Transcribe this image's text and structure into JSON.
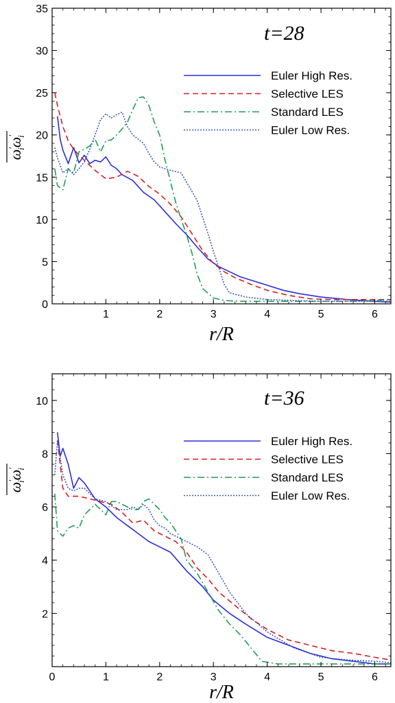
{
  "chart_data": [
    {
      "type": "line",
      "annotation": "t=28",
      "xlabel": "r/R",
      "ylabel": {
        "base": "ω",
        "sup": "′",
        "sub": "i"
      },
      "xlim": [
        0,
        6.3
      ],
      "ylim": [
        0,
        35
      ],
      "xticks": [
        1,
        2,
        3,
        4,
        5,
        6
      ],
      "yticks": [
        0,
        5,
        10,
        15,
        20,
        25,
        30,
        35
      ],
      "legend": "upper-right",
      "series": [
        {
          "name": "Euler High Res.",
          "color": "#2b2bd9",
          "dash": "solid",
          "x": [
            0.1,
            0.15,
            0.2,
            0.3,
            0.4,
            0.5,
            0.6,
            0.7,
            0.8,
            0.9,
            1.0,
            1.1,
            1.2,
            1.3,
            1.5,
            1.7,
            1.9,
            2.1,
            2.3,
            2.5,
            2.7,
            2.9,
            3.1,
            3.3,
            3.5,
            3.8,
            4.0,
            4.3,
            4.6,
            5.0,
            5.5,
            6.0,
            6.3
          ],
          "y": [
            22.2,
            19.5,
            18.2,
            16.6,
            18.5,
            16.7,
            17.6,
            16.6,
            17.0,
            16.8,
            17.4,
            16.4,
            16.0,
            15.3,
            14.6,
            13.2,
            12.3,
            10.9,
            9.5,
            8.2,
            6.7,
            5.3,
            4.4,
            3.8,
            3.2,
            2.6,
            2.2,
            1.6,
            1.2,
            0.8,
            0.5,
            0.3,
            0.2
          ]
        },
        {
          "name": "Selective LES",
          "color": "#d21f1f",
          "dash": "8,5",
          "x": [
            0.05,
            0.1,
            0.2,
            0.3,
            0.4,
            0.5,
            0.6,
            0.8,
            1.0,
            1.2,
            1.4,
            1.6,
            1.8,
            2.0,
            2.2,
            2.4,
            2.6,
            2.8,
            3.0,
            3.2,
            3.4,
            3.7,
            4.0,
            4.4,
            4.8,
            5.2,
            5.6,
            6.0,
            6.3
          ],
          "y": [
            25.0,
            23.5,
            21.0,
            19.3,
            18.3,
            17.6,
            17.0,
            15.8,
            14.8,
            15.0,
            15.7,
            15.1,
            13.9,
            13.0,
            11.8,
            10.3,
            8.3,
            6.3,
            4.8,
            3.8,
            3.1,
            2.3,
            1.6,
            1.0,
            0.6,
            0.5,
            0.5,
            0.5,
            0.5
          ]
        },
        {
          "name": "Standard LES",
          "color": "#1e9c55",
          "dash": "10,4,2,4",
          "x": [
            0.05,
            0.1,
            0.2,
            0.3,
            0.4,
            0.5,
            0.6,
            0.7,
            0.8,
            0.9,
            1.0,
            1.1,
            1.2,
            1.3,
            1.4,
            1.5,
            1.6,
            1.7,
            1.8,
            1.9,
            2.0,
            2.1,
            2.2,
            2.3,
            2.4,
            2.5,
            2.6,
            2.7,
            2.8,
            3.0,
            3.2,
            3.5,
            4.0,
            4.5,
            5.0,
            5.5,
            6.0,
            6.3
          ],
          "y": [
            16.0,
            14.0,
            13.5,
            16.0,
            15.5,
            18.0,
            18.3,
            18.7,
            19.5,
            18.0,
            19.3,
            19.4,
            20.0,
            20.7,
            21.5,
            23.0,
            24.4,
            24.5,
            23.5,
            21.5,
            20.0,
            17.0,
            14.5,
            12.0,
            10.0,
            8.2,
            6.0,
            3.5,
            1.8,
            0.7,
            0.4,
            0.3,
            0.3,
            0.3,
            0.3,
            0.3,
            0.4,
            0.5
          ]
        },
        {
          "name": "Euler Low Res.",
          "color": "#3a58b8",
          "dash": "2,2",
          "x": [
            0.05,
            0.1,
            0.2,
            0.3,
            0.4,
            0.5,
            0.6,
            0.7,
            0.8,
            0.9,
            1.0,
            1.1,
            1.2,
            1.3,
            1.4,
            1.5,
            1.6,
            1.7,
            1.8,
            1.9,
            2.0,
            2.2,
            2.4,
            2.6,
            2.7,
            2.8,
            2.9,
            3.0,
            3.1,
            3.2,
            3.3,
            3.6,
            4.0,
            4.5,
            5.0,
            5.5,
            6.0,
            6.3
          ],
          "y": [
            18.5,
            17.3,
            15.5,
            16.0,
            15.3,
            16.0,
            16.8,
            18.3,
            20.0,
            21.8,
            22.5,
            22.0,
            22.4,
            22.7,
            21.0,
            20.0,
            19.5,
            19.0,
            17.8,
            16.8,
            16.2,
            15.8,
            15.5,
            13.3,
            12.2,
            10.2,
            8.3,
            6.2,
            4.3,
            2.3,
            1.3,
            0.8,
            0.5,
            0.4,
            0.3,
            0.3,
            0.3,
            0.3
          ]
        }
      ]
    },
    {
      "type": "line",
      "annotation": "t=36",
      "xlabel": "r/R",
      "ylabel": {
        "base": "ω",
        "sup": "′",
        "sub": "i"
      },
      "xlim": [
        0,
        6.3
      ],
      "ylim": [
        0,
        11
      ],
      "xticks": [
        0,
        1,
        2,
        3,
        4,
        5,
        6
      ],
      "yticks": [
        2,
        4,
        6,
        8,
        10
      ],
      "legend": "upper-right",
      "series": [
        {
          "name": "Euler High Res.",
          "color": "#2b2bd9",
          "dash": "solid",
          "x": [
            0.1,
            0.15,
            0.2,
            0.3,
            0.4,
            0.5,
            0.6,
            0.7,
            0.8,
            1.0,
            1.2,
            1.4,
            1.6,
            1.8,
            2.0,
            2.2,
            2.5,
            2.8,
            3.0,
            3.3,
            3.6,
            4.0,
            4.4,
            4.8,
            5.2,
            5.6,
            6.0,
            6.3
          ],
          "y": [
            8.8,
            7.9,
            8.2,
            7.6,
            6.7,
            7.1,
            6.9,
            6.6,
            6.3,
            6.0,
            5.6,
            5.3,
            5.0,
            4.7,
            4.5,
            4.3,
            3.6,
            3.0,
            2.5,
            2.0,
            1.6,
            1.1,
            0.8,
            0.5,
            0.3,
            0.2,
            0.1,
            0.1
          ]
        },
        {
          "name": "Selective LES",
          "color": "#d21f1f",
          "dash": "8,5",
          "x": [
            0.1,
            0.2,
            0.3,
            0.5,
            0.7,
            0.9,
            1.1,
            1.3,
            1.5,
            1.7,
            1.9,
            2.1,
            2.3,
            2.5,
            2.7,
            2.9,
            3.1,
            3.4,
            3.7,
            4.0,
            4.4,
            4.8,
            5.2,
            5.6,
            6.0,
            6.3
          ],
          "y": [
            8.5,
            6.7,
            6.4,
            6.4,
            6.3,
            6.2,
            6.1,
            5.8,
            5.4,
            5.5,
            5.1,
            4.9,
            4.7,
            4.3,
            3.7,
            3.3,
            2.8,
            2.3,
            1.8,
            1.4,
            1.0,
            0.8,
            0.6,
            0.5,
            0.35,
            0.25
          ]
        },
        {
          "name": "Standard LES",
          "color": "#1e9c55",
          "dash": "10,4,2,4",
          "x": [
            0.05,
            0.1,
            0.2,
            0.3,
            0.4,
            0.5,
            0.6,
            0.7,
            0.8,
            0.9,
            1.0,
            1.1,
            1.2,
            1.3,
            1.4,
            1.5,
            1.6,
            1.7,
            1.8,
            1.9,
            2.0,
            2.1,
            2.2,
            2.3,
            2.4,
            2.5,
            2.7,
            2.9,
            3.1,
            3.3,
            3.5,
            3.7,
            3.9,
            4.2,
            4.6,
            5.0,
            5.5,
            6.0,
            6.3
          ],
          "y": [
            6.5,
            5.1,
            4.9,
            5.2,
            5.3,
            5.2,
            5.7,
            5.9,
            6.1,
            5.9,
            5.7,
            6.2,
            6.2,
            6.1,
            6.0,
            5.9,
            5.9,
            6.2,
            6.3,
            6.1,
            5.9,
            5.6,
            5.4,
            5.1,
            4.8,
            4.0,
            3.5,
            2.8,
            2.1,
            1.6,
            1.2,
            0.7,
            0.2,
            0.1,
            0.1,
            0.1,
            0.1,
            0.1,
            0.1
          ]
        },
        {
          "name": "Euler Low Res.",
          "color": "#3a58b8",
          "dash": "2,2",
          "x": [
            0.05,
            0.1,
            0.2,
            0.3,
            0.4,
            0.5,
            0.6,
            0.7,
            0.8,
            1.0,
            1.2,
            1.4,
            1.5,
            1.6,
            1.7,
            1.8,
            1.9,
            2.0,
            2.1,
            2.2,
            2.3,
            2.4,
            2.5,
            2.7,
            2.9,
            3.1,
            3.3,
            3.6,
            4.0,
            4.5,
            5.0,
            5.5,
            6.0,
            6.3
          ],
          "y": [
            7.2,
            8.5,
            7.2,
            6.7,
            6.6,
            6.7,
            6.7,
            6.5,
            6.3,
            6.2,
            5.9,
            5.9,
            6.0,
            5.9,
            6.1,
            5.9,
            5.5,
            5.3,
            5.2,
            5.0,
            4.9,
            4.8,
            4.7,
            4.5,
            4.2,
            3.5,
            2.8,
            2.0,
            1.3,
            0.7,
            0.35,
            0.25,
            0.2,
            0.15
          ]
        }
      ]
    }
  ]
}
